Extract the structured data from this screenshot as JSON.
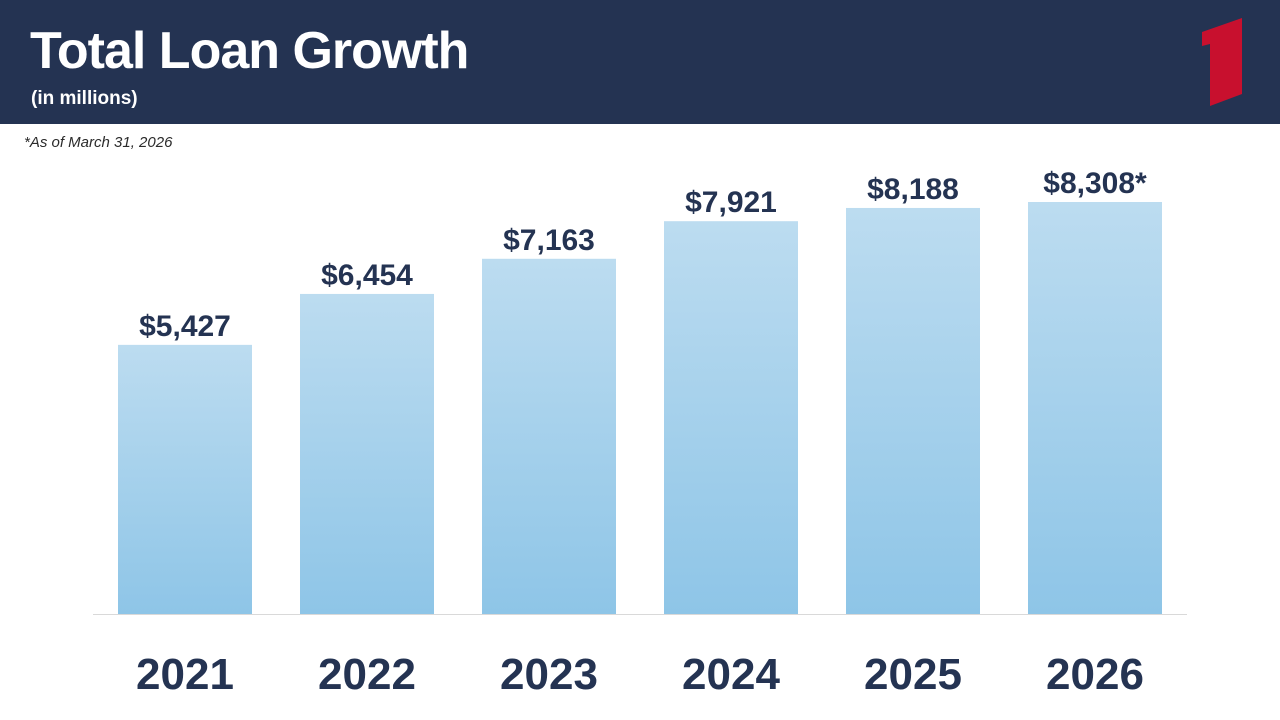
{
  "header": {
    "title": "Total Loan Growth",
    "subtitle": "(in millions)",
    "logo_icon": "bank-logo-icon"
  },
  "footnote": "*As of March 31, 2026",
  "colors": {
    "header_bg": "#243352",
    "logo": "#c8102e",
    "bar_top": "#bcdcf0",
    "bar_bottom": "#8ec5e7",
    "label": "#243352"
  },
  "chart_data": {
    "type": "bar",
    "title": "Total Loan Growth",
    "subtitle": "(in millions)",
    "categories": [
      "2021",
      "2022",
      "2023",
      "2024",
      "2025",
      "2026"
    ],
    "values": [
      5427,
      6454,
      7163,
      7921,
      8188,
      8308
    ],
    "value_labels": [
      "$5,427",
      "$6,454",
      "$7,163",
      "$7,921",
      "$8,188",
      "$8,308*"
    ],
    "xlabel": "",
    "ylabel": "",
    "grid": false,
    "legend": "none"
  }
}
